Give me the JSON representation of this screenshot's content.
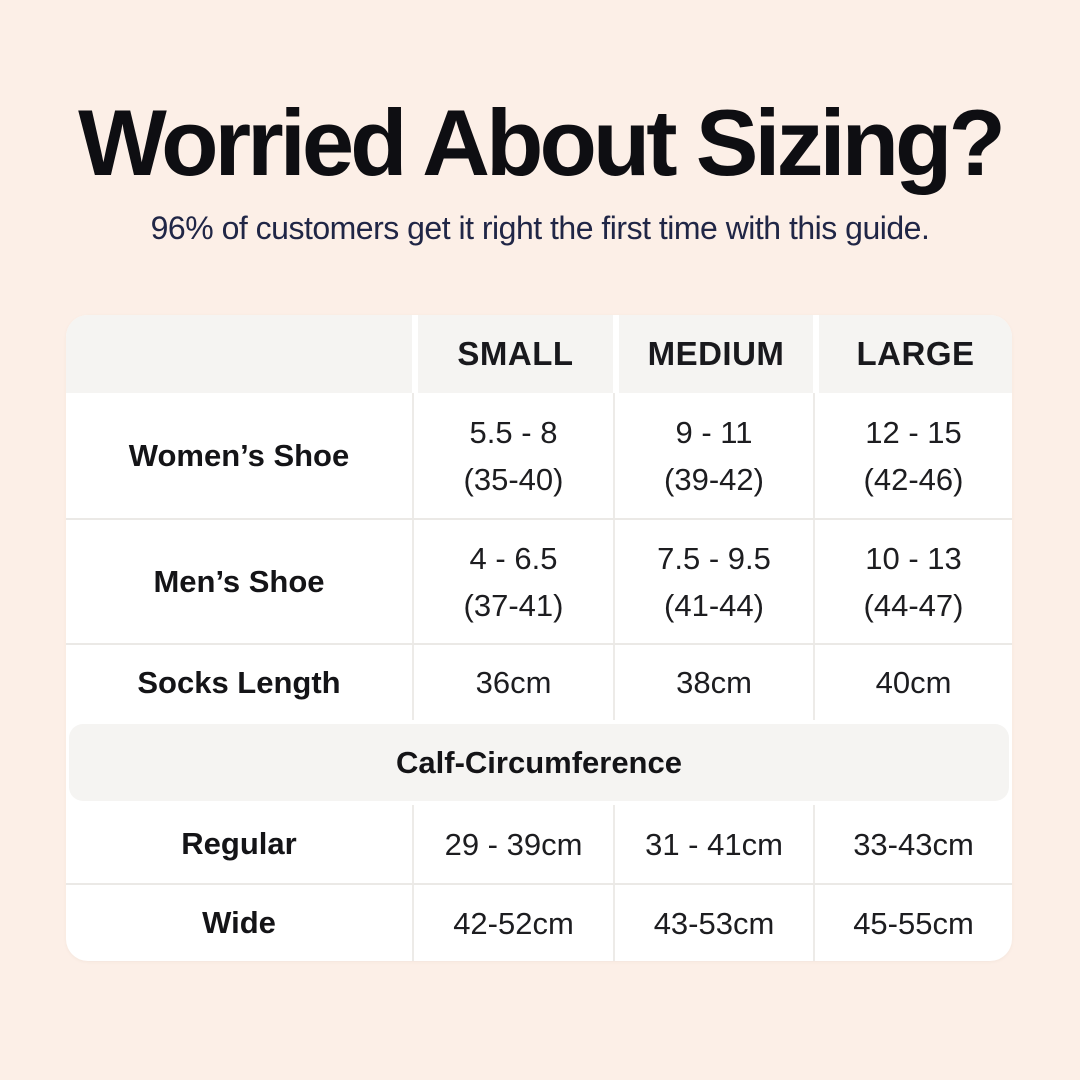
{
  "header": {
    "title": "Worried About Sizing?",
    "subtitle": "96% of customers get it right the first time with this guide."
  },
  "colors": {
    "page_background": "#fcefe7",
    "table_background": "#ffffff",
    "header_band_gray": "#f5f4f2",
    "divider": "#ebe9e6",
    "title_text": "#0e0e12",
    "subtitle_text": "#202646"
  },
  "table": {
    "column_headers": [
      "SMALL",
      "MEDIUM",
      "LARGE"
    ],
    "rows": [
      {
        "label": "Women’s Shoe",
        "values": [
          "5.5 - 8\n(35-40)",
          "9 - 11\n(39-42)",
          "12 - 15\n(42-46)"
        ]
      },
      {
        "label": "Men’s Shoe",
        "values": [
          "4 - 6.5\n(37-41)",
          "7.5 - 9.5\n(41-44)",
          "10 - 13\n(44-47)"
        ]
      },
      {
        "label": "Socks Length",
        "values": [
          "36cm",
          "38cm",
          "40cm"
        ]
      }
    ],
    "section_header": "Calf-Circumference",
    "section_rows": [
      {
        "label": "Regular",
        "values": [
          "29 - 39cm",
          "31 - 41cm",
          "33-43cm"
        ]
      },
      {
        "label": "Wide",
        "values": [
          "42-52cm",
          "43-53cm",
          "45-55cm"
        ]
      }
    ]
  }
}
